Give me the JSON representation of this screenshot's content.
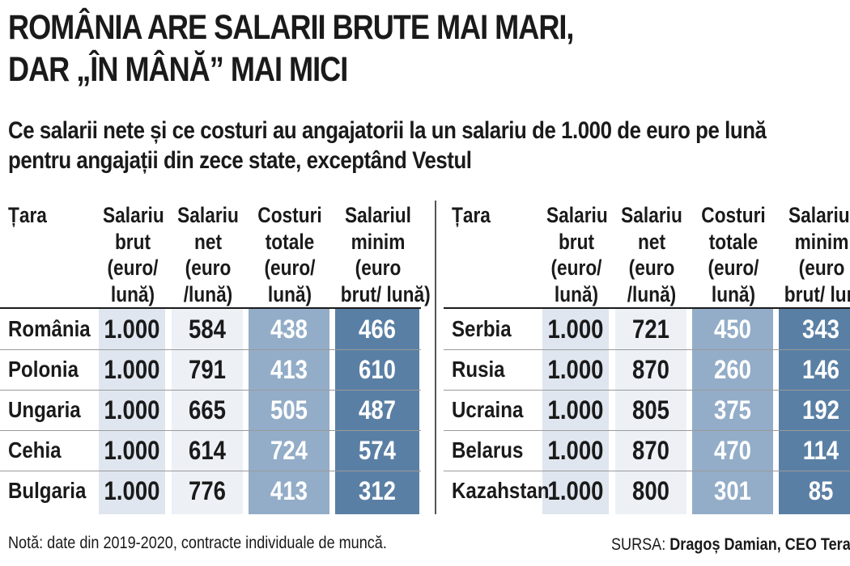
{
  "title_line1": "ROMÂNIA ARE SALARII BRUTE MAI MARI,",
  "title_line2": "DAR „ÎN MÂNĂ” MAI MICI",
  "subtitle": "Ce salarii nete și ce costuri au angajatorii la un salariu de 1.000 de euro pe lună pentru angajații din zece state, exceptând Vestul",
  "note": "Notă: date din 2019-2020, contracte individuale de muncă.",
  "source_label": "SURSA:",
  "source_name": "Dragoș Damian, CEO Terapia",
  "colors": {
    "col_brut": "#dfe6ef",
    "col_net": "#edf1f6",
    "col_costuri": "#93adc8",
    "col_minim": "#5a7fa4",
    "text_light": "#ffffff"
  },
  "chart_data": {
    "type": "table",
    "columns": [
      "Țara",
      "Salariu brut (euro/ lună)",
      "Salariu net (euro /lună)",
      "Costuri totale (euro/ lună)",
      "Salariul minim (euro brut/ lună)"
    ],
    "header_lines": [
      [
        "Țara"
      ],
      [
        "Salariu",
        "brut",
        "(euro/",
        "lună)"
      ],
      [
        "Salariu",
        "net",
        "(euro",
        "/lună)"
      ],
      [
        "Costuri",
        "totale",
        "(euro/",
        "lună)"
      ],
      [
        "Salariul",
        "minim",
        "(euro",
        "brut/ lună)"
      ]
    ],
    "tables": [
      {
        "rows": [
          [
            "România",
            "1.000",
            "584",
            "438",
            "466"
          ],
          [
            "Polonia",
            "1.000",
            "791",
            "413",
            "610"
          ],
          [
            "Ungaria",
            "1.000",
            "665",
            "505",
            "487"
          ],
          [
            "Cehia",
            "1.000",
            "614",
            "724",
            "574"
          ],
          [
            "Bulgaria",
            "1.000",
            "776",
            "413",
            "312"
          ]
        ]
      },
      {
        "rows": [
          [
            "Serbia",
            "1.000",
            "721",
            "450",
            "343"
          ],
          [
            "Rusia",
            "1.000",
            "870",
            "260",
            "146"
          ],
          [
            "Ucraina",
            "1.000",
            "805",
            "375",
            "192"
          ],
          [
            "Belarus",
            "1.000",
            "870",
            "470",
            "114"
          ],
          [
            "Kazahstan",
            "1.000",
            "800",
            "301",
            "85"
          ]
        ]
      }
    ]
  }
}
